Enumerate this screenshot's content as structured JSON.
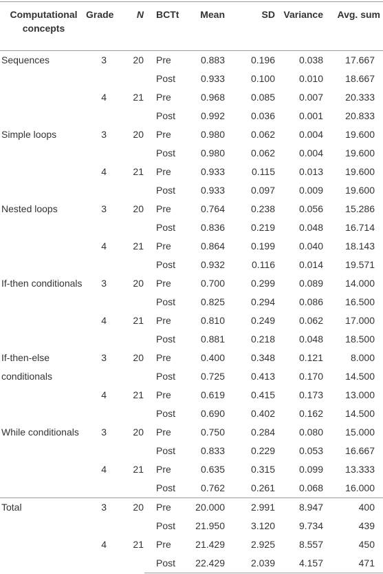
{
  "table": {
    "header": [
      "Computational concepts",
      "Grade",
      "N",
      "BCTt",
      "Mean",
      "SD",
      "Variance",
      "Avg. sum"
    ],
    "groups": [
      {
        "concept": "Sequences",
        "grades": [
          {
            "grade": "3",
            "n": "20",
            "rows": [
              [
                "Pre",
                "0.883",
                "0.196",
                "0.038",
                "17.667"
              ],
              [
                "Post",
                "0.933",
                "0.100",
                "0.010",
                "18.667"
              ]
            ]
          },
          {
            "grade": "4",
            "n": "21",
            "rows": [
              [
                "Pre",
                "0.968",
                "0.085",
                "0.007",
                "20.333"
              ],
              [
                "Post",
                "0.992",
                "0.036",
                "0.001",
                "20.833"
              ]
            ]
          }
        ]
      },
      {
        "concept": "Simple loops",
        "grades": [
          {
            "grade": "3",
            "n": "20",
            "rows": [
              [
                "Pre",
                "0.980",
                "0.062",
                "0.004",
                "19.600"
              ],
              [
                "Post",
                "0.980",
                "0.062",
                "0.004",
                "19.600"
              ]
            ]
          },
          {
            "grade": "4",
            "n": "21",
            "rows": [
              [
                "Pre",
                "0.933",
                "0.115",
                "0.013",
                "19.600"
              ],
              [
                "Post",
                "0.933",
                "0.097",
                "0.009",
                "19.600"
              ]
            ]
          }
        ]
      },
      {
        "concept": "Nested loops",
        "grades": [
          {
            "grade": "3",
            "n": "20",
            "rows": [
              [
                "Pre",
                "0.764",
                "0.238",
                "0.056",
                "15.286"
              ],
              [
                "Post",
                "0.836",
                "0.219",
                "0.048",
                "16.714"
              ]
            ]
          },
          {
            "grade": "4",
            "n": "21",
            "rows": [
              [
                "Pre",
                "0.864",
                "0.199",
                "0.040",
                "18.143"
              ],
              [
                "Post",
                "0.932",
                "0.116",
                "0.014",
                "19.571"
              ]
            ]
          }
        ]
      },
      {
        "concept": "If-then conditionals",
        "grades": [
          {
            "grade": "3",
            "n": "20",
            "rows": [
              [
                "Pre",
                "0.700",
                "0.299",
                "0.089",
                "14.000"
              ],
              [
                "Post",
                "0.825",
                "0.294",
                "0.086",
                "16.500"
              ]
            ]
          },
          {
            "grade": "4",
            "n": "21",
            "rows": [
              [
                "Pre",
                "0.810",
                "0.249",
                "0.062",
                "17.000"
              ],
              [
                "Post",
                "0.881",
                "0.218",
                "0.048",
                "18.500"
              ]
            ]
          }
        ]
      },
      {
        "concept": "If-then-else conditionals",
        "grades": [
          {
            "grade": "3",
            "n": "20",
            "rows": [
              [
                "Pre",
                "0.400",
                "0.348",
                "0.121",
                "8.000"
              ],
              [
                "Post",
                "0.725",
                "0.413",
                "0.170",
                "14.500"
              ]
            ]
          },
          {
            "grade": "4",
            "n": "21",
            "rows": [
              [
                "Pre",
                "0.619",
                "0.415",
                "0.173",
                "13.000"
              ],
              [
                "Post",
                "0.690",
                "0.402",
                "0.162",
                "14.500"
              ]
            ]
          }
        ]
      },
      {
        "concept": "While conditionals",
        "grades": [
          {
            "grade": "3",
            "n": "20",
            "rows": [
              [
                "Pre",
                "0.750",
                "0.284",
                "0.080",
                "15.000"
              ],
              [
                "Post",
                "0.833",
                "0.229",
                "0.053",
                "16.667"
              ]
            ]
          },
          {
            "grade": "4",
            "n": "21",
            "rows": [
              [
                "Pre",
                "0.635",
                "0.315",
                "0.099",
                "13.333"
              ],
              [
                "Post",
                "0.762",
                "0.261",
                "0.068",
                "16.000"
              ]
            ]
          }
        ]
      },
      {
        "concept": "Total",
        "grades": [
          {
            "grade": "3",
            "n": "20",
            "rows": [
              [
                "Pre",
                "20.000",
                "2.991",
                "8.947",
                "400"
              ],
              [
                "Post",
                "21.950",
                "3.120",
                "9.734",
                "439"
              ]
            ]
          },
          {
            "grade": "4",
            "n": "21",
            "rows": [
              [
                "Pre",
                "21.429",
                "2.925",
                "8.557",
                "450"
              ],
              [
                "Post",
                "22.429",
                "2.039",
                "4.157",
                "471"
              ]
            ]
          }
        ]
      }
    ]
  }
}
